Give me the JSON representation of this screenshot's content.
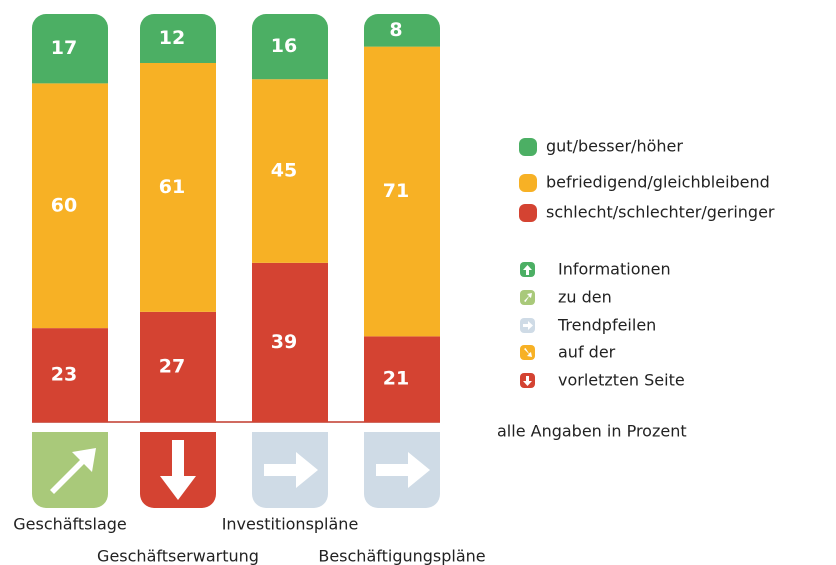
{
  "chart_data": {
    "type": "stacked_bar",
    "categories": [
      "Geschäftslage",
      "Geschäftserwartung",
      "Investitionspläne",
      "Beschäftigungspläne"
    ],
    "series": [
      {
        "name": "gut/besser/höher",
        "color": "#4caf64",
        "values": [
          17,
          12,
          16,
          8
        ]
      },
      {
        "name": "befriedigend/gleichbleibend",
        "color": "#f7b125",
        "values": [
          60,
          61,
          45,
          71
        ]
      },
      {
        "name": "schlecht/schlechter/geringer",
        "color": "#d44332",
        "values": [
          23,
          27,
          39,
          21
        ]
      }
    ],
    "trend_legend": [
      "Informationen",
      "zu den",
      "Trendpfeilen",
      "auf der",
      "vorletzten Seite"
    ],
    "note": "alle Angaben in Prozent"
  }
}
